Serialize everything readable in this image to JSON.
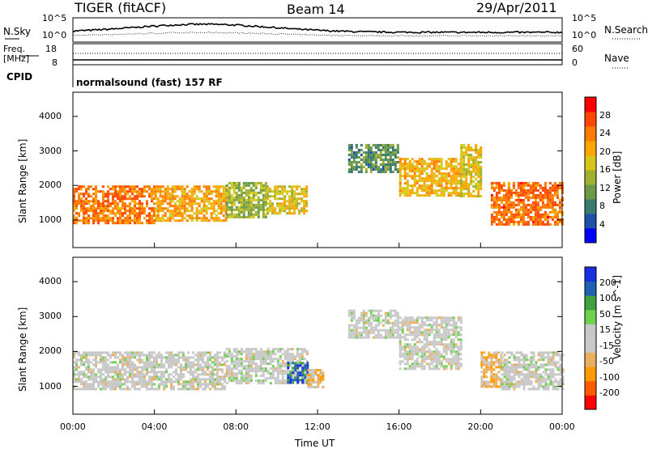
{
  "header": {
    "station": "TIGER (fitACF)",
    "beam": "Beam 14",
    "date": "29/Apr/2011"
  },
  "noise_panel": {
    "left_label": "N.Sky",
    "right_label": "N.Search",
    "scale_top": "10^5",
    "scale_bottom": "10^0",
    "right_scale_top": "10^5",
    "right_scale_bottom": "10^0"
  },
  "freq_panel": {
    "left_label_1": "Freq.",
    "left_label_2": "[MHz]",
    "left_top": "18",
    "left_bottom": "8",
    "right_label": "Nave",
    "right_top": "60",
    "right_bottom": "0",
    "cpid_label": "CPID"
  },
  "cpid_text": "normalsound (fast) 157 RF",
  "colors": {
    "power": [
      "#0000ff",
      "#2050a8",
      "#3a7a70",
      "#6a9a48",
      "#a0b030",
      "#d6c81a",
      "#ffa500",
      "#ff7a00",
      "#ff4800",
      "#ff0000"
    ],
    "velocity": [
      "#ff0000",
      "#ff5a00",
      "#ff9a00",
      "#e8b060",
      "#c8c8c8",
      "#c8c8c8",
      "#70d050",
      "#40a040",
      "#2060b0",
      "#1830e0"
    ]
  },
  "chart_data": [
    {
      "type": "heatmap",
      "name": "power",
      "ylabel": "Slant Range [km]",
      "y_ticks": [
        "1000",
        "2000",
        "3000",
        "4000"
      ],
      "ylim": [
        200,
        4700
      ],
      "colorbar_label": "Power [dB]",
      "colorbar_ticks": [
        "4",
        "8",
        "12",
        "16",
        "20",
        "24",
        "28"
      ],
      "color_range": [
        0,
        32
      ],
      "grid": false,
      "regions": [
        {
          "t0": 0.0,
          "t1": 4.0,
          "r0": 900,
          "r1": 2000,
          "v": 24
        },
        {
          "t0": 4.0,
          "t1": 7.5,
          "r0": 950,
          "r1": 2000,
          "v": 21
        },
        {
          "t0": 7.5,
          "t1": 9.5,
          "r0": 1100,
          "r1": 2100,
          "v": 14
        },
        {
          "t0": 9.5,
          "t1": 11.5,
          "r0": 1200,
          "r1": 2000,
          "v": 18
        },
        {
          "t0": 13.5,
          "t1": 16.0,
          "r0": 2400,
          "r1": 3200,
          "v": 10
        },
        {
          "t0": 16.0,
          "t1": 19.0,
          "r0": 1700,
          "r1": 2800,
          "v": 20
        },
        {
          "t0": 19.0,
          "t1": 20.0,
          "r0": 1700,
          "r1": 3200,
          "v": 18
        },
        {
          "t0": 20.5,
          "t1": 24.0,
          "r0": 900,
          "r1": 2100,
          "v": 25
        }
      ]
    },
    {
      "type": "heatmap",
      "name": "velocity",
      "ylabel": "Slant Range [km]",
      "y_ticks": [
        "1000",
        "2000",
        "3000",
        "4000"
      ],
      "ylim": [
        200,
        4700
      ],
      "colorbar_label": "Velocity [m s^-1]",
      "colorbar_ticks": [
        "200",
        "100",
        "50",
        "15",
        "-15",
        "-50",
        "-100",
        "-200"
      ],
      "color_range": [
        -250,
        250
      ],
      "grid": false,
      "x_ticks": [
        "00:00",
        "04:00",
        "08:00",
        "12:00",
        "16:00",
        "20:00",
        "00:00"
      ],
      "xlabel": "Time UT",
      "xlim": [
        0,
        24
      ],
      "regions": [
        {
          "t0": 0.0,
          "t1": 7.5,
          "r0": 900,
          "r1": 2000,
          "v": 0
        },
        {
          "t0": 7.5,
          "t1": 11.5,
          "r0": 1100,
          "r1": 2100,
          "v": 5
        },
        {
          "t0": 10.5,
          "t1": 11.5,
          "r0": 1100,
          "r1": 1700,
          "v": 180
        },
        {
          "t0": 11.5,
          "t1": 12.3,
          "r0": 1000,
          "r1": 1500,
          "v": -60
        },
        {
          "t0": 13.5,
          "t1": 16.0,
          "r0": 2400,
          "r1": 3200,
          "v": 0
        },
        {
          "t0": 16.0,
          "t1": 19.0,
          "r0": 1500,
          "r1": 3000,
          "v": 0
        },
        {
          "t0": 20.0,
          "t1": 21.0,
          "r0": 1000,
          "r1": 2000,
          "v": -80
        },
        {
          "t0": 21.0,
          "t1": 24.0,
          "r0": 900,
          "r1": 2000,
          "v": 0
        }
      ]
    }
  ]
}
